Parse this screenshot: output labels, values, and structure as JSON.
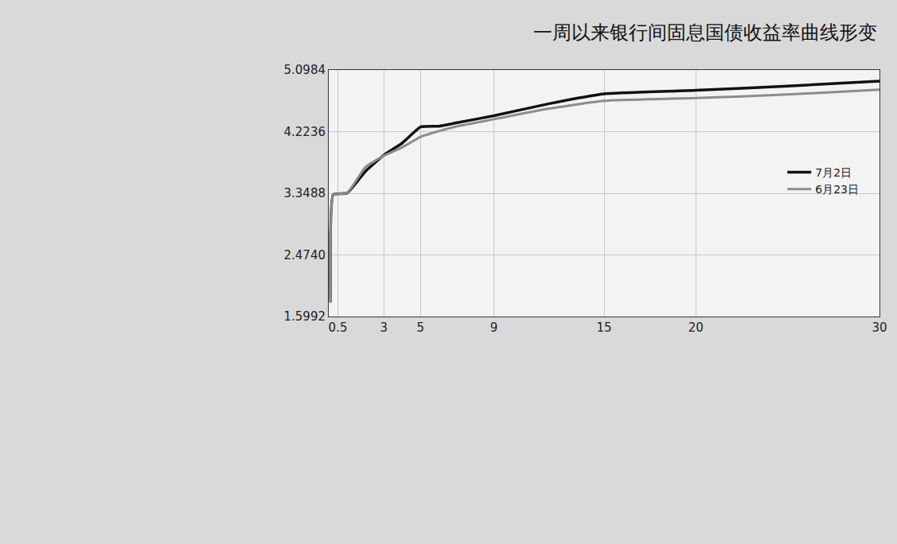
{
  "chart_data": {
    "type": "line",
    "title": "一周以来银行间固息国债收益率曲线形变",
    "xlim": [
      0,
      30
    ],
    "xticks": [
      0.5,
      3,
      5,
      9,
      15,
      20,
      30
    ],
    "ylim": [
      1.5992,
      5.0984
    ],
    "yticks": [
      1.5992,
      {
        "value": 2.474,
        "label": "2.4740"
      },
      3.3488,
      4.2236,
      5.0984
    ],
    "grid": true,
    "legend": "right",
    "series": [
      {
        "name": "7月2日",
        "color": "#111111",
        "line_style": "solid",
        "x": [
          0.1,
          0.25,
          1,
          2,
          3,
          4,
          5,
          6,
          7,
          9,
          12,
          15,
          20,
          25,
          30
        ],
        "values": [
          1.8,
          3.33,
          3.35,
          3.66,
          3.89,
          4.06,
          4.29,
          4.3,
          4.35,
          4.45,
          4.62,
          4.76,
          4.81,
          4.87,
          4.94
        ]
      },
      {
        "name": "6月23日",
        "color": "#8c8c8c",
        "line_style": "solid",
        "x": [
          0.1,
          0.25,
          1,
          2,
          3,
          4,
          5,
          6,
          7,
          9,
          12,
          15,
          20,
          25,
          30
        ],
        "values": [
          1.8,
          3.33,
          3.35,
          3.72,
          3.88,
          4.0,
          4.15,
          4.23,
          4.3,
          4.4,
          4.55,
          4.66,
          4.7,
          4.75,
          4.82
        ]
      }
    ]
  }
}
